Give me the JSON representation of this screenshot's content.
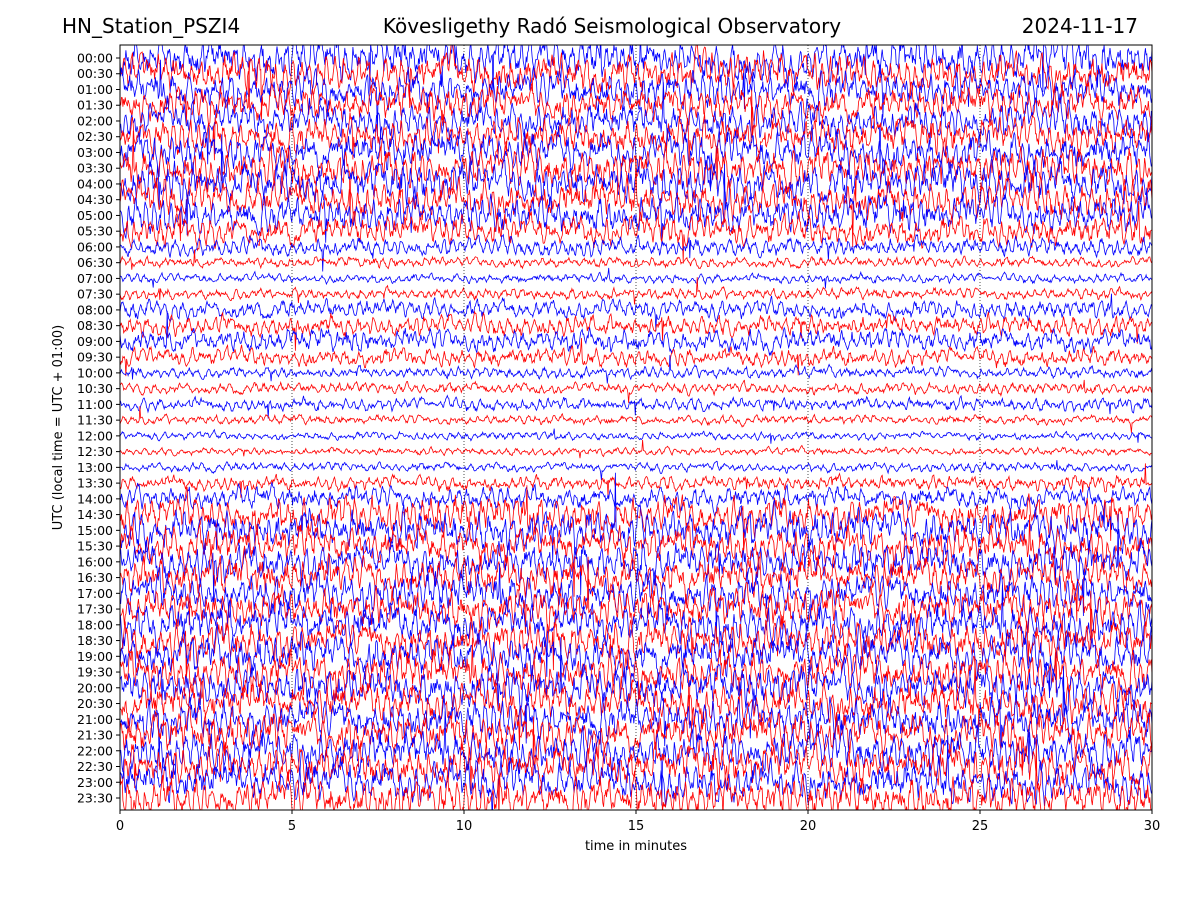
{
  "header": {
    "station": "HN_Station_PSZI4",
    "observatory": "Kövesligethy Radó Seismological Observatory",
    "date": "2024-11-17"
  },
  "chart_data": {
    "type": "line",
    "title": "Kövesligethy Radó Seismological Observatory",
    "xlabel": "time in minutes",
    "ylabel": "UTC (local time = UTC + 01:00)",
    "xlim": [
      0,
      30
    ],
    "x_ticks": [
      "0",
      "5",
      "10",
      "15",
      "20",
      "25",
      "30"
    ],
    "x_tick_values": [
      0,
      5,
      10,
      15,
      20,
      25,
      30
    ],
    "vertical_gridlines_at": [
      5,
      10,
      15,
      20,
      25
    ],
    "row_labels": [
      "00:00",
      "00:30",
      "01:00",
      "01:30",
      "02:00",
      "02:30",
      "03:00",
      "03:30",
      "04:00",
      "04:30",
      "05:00",
      "05:30",
      "06:00",
      "06:30",
      "07:00",
      "07:30",
      "08:00",
      "08:30",
      "09:00",
      "09:30",
      "10:00",
      "10:30",
      "11:00",
      "11:30",
      "12:00",
      "12:30",
      "13:00",
      "13:30",
      "14:00",
      "14:30",
      "15:00",
      "15:30",
      "16:00",
      "16:30",
      "17:00",
      "17:30",
      "18:00",
      "18:30",
      "19:00",
      "19:30",
      "20:00",
      "20:30",
      "21:00",
      "21:30",
      "22:00",
      "22:30",
      "23:00",
      "23:30"
    ],
    "trace_colors": [
      "#0000ff",
      "#ff0000"
    ],
    "row_activity": [
      1.0,
      0.95,
      0.9,
      0.85,
      0.88,
      0.9,
      0.95,
      1.0,
      1.0,
      0.95,
      0.9,
      0.7,
      0.4,
      0.18,
      0.15,
      0.2,
      0.4,
      0.45,
      0.5,
      0.4,
      0.2,
      0.2,
      0.25,
      0.15,
      0.12,
      0.1,
      0.15,
      0.3,
      0.5,
      0.9,
      0.95,
      0.9,
      0.95,
      0.95,
      0.95,
      0.95,
      1.0,
      1.0,
      1.0,
      1.0,
      1.0,
      1.0,
      1.0,
      1.0,
      1.0,
      1.0,
      1.0,
      1.0
    ]
  }
}
